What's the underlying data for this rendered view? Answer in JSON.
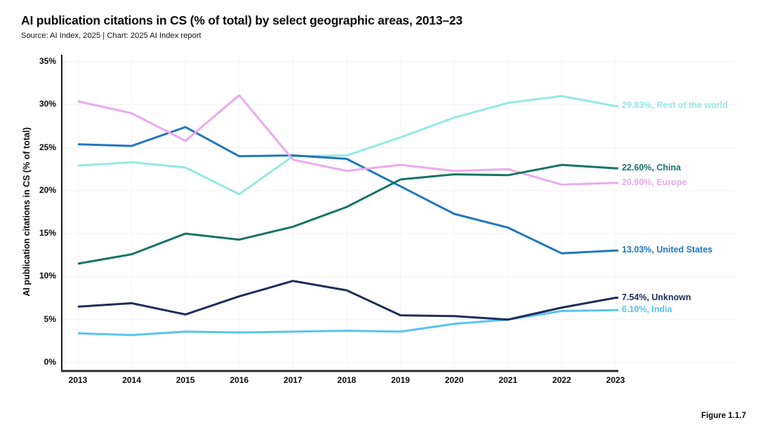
{
  "header": {
    "title": "AI publication citations in CS (% of total) by select geographic areas, 2013–23",
    "source": "Source: AI Index, 2025 | Chart: 2025 AI Index report"
  },
  "footer": {
    "figure_label": "Figure 1.1.7"
  },
  "chart_data": {
    "type": "line",
    "title": "AI publication citations in CS (% of total) by select geographic areas, 2013–23",
    "xlabel": "",
    "ylabel": "AI publication citations in CS (% of total)",
    "x": [
      2013,
      2014,
      2015,
      2016,
      2017,
      2018,
      2019,
      2020,
      2021,
      2022,
      2023
    ],
    "ylim": [
      0,
      35
    ],
    "ytick_step": 5,
    "ytick_suffix": "%",
    "grid": true,
    "legend_position": "right-end-labels",
    "series": [
      {
        "name": "Rest of the world",
        "end_label": "29.83%, Rest of the world",
        "end_value": "29.83%",
        "color": "#93EAE3",
        "values": [
          22.9,
          23.3,
          22.7,
          19.6,
          24.0,
          24.1,
          26.2,
          28.5,
          30.2,
          31.0,
          29.83
        ]
      },
      {
        "name": "United States",
        "end_label": "13.03%, United States",
        "end_value": "13.03%",
        "color": "#2176BD",
        "values": [
          25.4,
          25.2,
          27.4,
          24.0,
          24.1,
          23.7,
          20.5,
          17.3,
          15.7,
          12.7,
          13.03
        ]
      },
      {
        "name": "Europe",
        "end_label": "20.90%, Europe",
        "end_value": "20.90%",
        "color": "#EBA9F1",
        "values": [
          30.4,
          29.0,
          25.8,
          31.1,
          23.6,
          22.3,
          23.0,
          22.3,
          22.5,
          20.7,
          20.9
        ]
      },
      {
        "name": "China",
        "end_label": "22.60%, China",
        "end_value": "22.60%",
        "color": "#177465",
        "values": [
          11.5,
          12.6,
          15.0,
          14.3,
          15.8,
          18.1,
          21.3,
          21.9,
          21.8,
          23.0,
          22.6
        ]
      },
      {
        "name": "India",
        "end_label": "6.10%, India",
        "end_value": "6.10%",
        "color": "#58C3F1",
        "values": [
          3.4,
          3.2,
          3.6,
          3.5,
          3.6,
          3.7,
          3.6,
          4.5,
          5.0,
          6.0,
          6.1
        ]
      },
      {
        "name": "Unknown",
        "end_label": "7.54%, Unknown",
        "end_value": "7.54%",
        "color": "#1E2D5C",
        "values": [
          6.5,
          6.9,
          5.6,
          7.7,
          9.5,
          8.4,
          5.5,
          5.4,
          5.0,
          6.4,
          7.54
        ]
      }
    ]
  }
}
